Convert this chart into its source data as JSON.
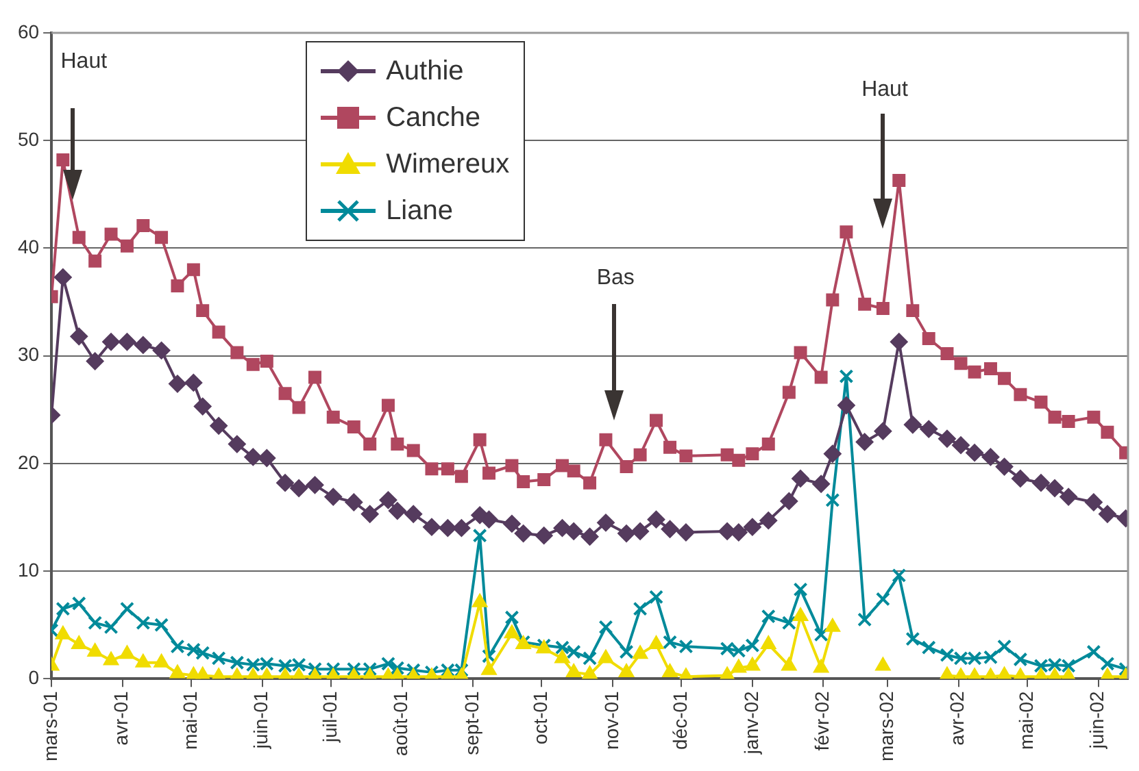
{
  "chart_data": {
    "type": "line",
    "x": [
      "2001-03-01",
      "2001-03-06",
      "2001-03-13",
      "2001-03-20",
      "2001-03-27",
      "2001-04-03",
      "2001-04-10",
      "2001-04-18",
      "2001-04-25",
      "2001-05-02",
      "2001-05-06",
      "2001-05-13",
      "2001-05-21",
      "2001-05-28",
      "2001-06-03",
      "2001-06-11",
      "2001-06-17",
      "2001-06-24",
      "2001-07-02",
      "2001-07-11",
      "2001-07-18",
      "2001-07-26",
      "2001-07-30",
      "2001-08-06",
      "2001-08-14",
      "2001-08-21",
      "2001-08-27",
      "2001-09-04",
      "2001-09-08",
      "2001-09-18",
      "2001-09-23",
      "2001-10-02",
      "2001-10-10",
      "2001-10-15",
      "2001-10-22",
      "2001-10-29",
      "2001-11-07",
      "2001-11-13",
      "2001-11-20",
      "2001-11-26",
      "2001-12-03",
      "2001-12-21",
      "2001-12-26",
      "2002-01-01",
      "2002-01-08",
      "2002-01-17",
      "2002-01-22",
      "2002-01-31",
      "2002-02-05",
      "2002-02-11",
      "2002-02-19",
      "2002-02-27",
      "2002-03-06",
      "2002-03-12",
      "2002-03-19",
      "2002-03-27",
      "2002-04-02",
      "2002-04-08",
      "2002-04-15",
      "2002-04-21",
      "2002-04-28",
      "2002-05-07",
      "2002-05-13",
      "2002-05-19",
      "2002-05-30",
      "2002-06-05",
      "2002-06-13"
    ],
    "series": [
      {
        "name": "Authie",
        "color": "#553b5e",
        "marker": "diamond",
        "values": [
          24.5,
          37.3,
          31.8,
          29.5,
          31.3,
          31.3,
          31,
          30.5,
          27.4,
          27.5,
          25.3,
          23.5,
          21.8,
          20.6,
          20.5,
          18.2,
          17.7,
          18,
          16.9,
          16.4,
          15.3,
          16.6,
          15.6,
          15.3,
          14.1,
          14,
          14,
          15.2,
          14.8,
          14.4,
          13.5,
          13.3,
          14,
          13.7,
          13.2,
          14.5,
          13.5,
          13.7,
          14.8,
          13.9,
          13.6,
          13.7,
          13.6,
          14.1,
          14.7,
          16.5,
          18.6,
          18.1,
          20.9,
          25.4,
          22,
          23,
          31.3,
          23.6,
          23.2,
          22.3,
          21.7,
          21,
          20.6,
          19.7,
          18.6,
          18.2,
          17.7,
          16.9,
          16.4,
          15.3,
          14.9
        ]
      },
      {
        "name": "Canche",
        "color": "#b0475f",
        "marker": "square",
        "values": [
          35.5,
          48.2,
          41,
          38.8,
          41.3,
          40.2,
          42.1,
          41,
          36.5,
          38,
          34.2,
          32.2,
          30.3,
          29.2,
          29.5,
          26.5,
          25.2,
          28,
          24.3,
          23.4,
          21.8,
          25.4,
          21.8,
          21.2,
          19.5,
          19.5,
          18.8,
          22.2,
          19.1,
          19.8,
          18.3,
          18.5,
          19.8,
          19.3,
          18.2,
          22.2,
          19.7,
          20.8,
          24,
          21.5,
          20.7,
          20.8,
          20.3,
          20.9,
          21.8,
          26.6,
          30.3,
          28,
          35.2,
          41.5,
          34.8,
          34.4,
          46.3,
          34.2,
          31.6,
          30.2,
          29.3,
          28.5,
          28.8,
          27.9,
          26.4,
          25.7,
          24.3,
          23.9,
          24.3,
          22.9,
          21
        ]
      },
      {
        "name": "Wimereux",
        "color": "#f0dc00",
        "marker": "triangle",
        "values": [
          1.2,
          4.1,
          3.2,
          2.5,
          1.7,
          2.3,
          1.5,
          1.5,
          0.5,
          0.3,
          0.3,
          0.2,
          0.2,
          0.2,
          0.2,
          0.2,
          0.2,
          0.2,
          0.2,
          0.2,
          0.2,
          0.2,
          0.2,
          0.2,
          0.2,
          0.2,
          0.2,
          7.1,
          0.8,
          4.2,
          3.2,
          2.8,
          1.9,
          0.6,
          0.4,
          1.9,
          0.6,
          2.3,
          3.2,
          0.6,
          0.2,
          0.3,
          1,
          1.2,
          3.2,
          1.2,
          5.8,
          1,
          4.8,
          null,
          null,
          1.2,
          null,
          null,
          null,
          0.3,
          0.2,
          0.2,
          0.2,
          0.3,
          0.2,
          0.2,
          0.2,
          0.2,
          null,
          0.2,
          0.2
        ]
      },
      {
        "name": "Liane",
        "color": "#008a9a",
        "marker": "cross",
        "values": [
          4.5,
          6.5,
          7,
          5.2,
          4.8,
          6.5,
          5.2,
          5,
          3,
          2.7,
          2.4,
          1.9,
          1.5,
          1.3,
          1.4,
          1.2,
          1.3,
          0.9,
          0.9,
          0.9,
          0.9,
          1.4,
          1,
          0.8,
          0.6,
          0.8,
          0.8,
          13.3,
          2.1,
          5.7,
          3.4,
          3.1,
          2.9,
          2.5,
          1.9,
          4.8,
          2.5,
          6.5,
          7.6,
          3.4,
          3,
          2.8,
          2.6,
          3.1,
          5.8,
          5.2,
          8.3,
          4.1,
          16.6,
          28.1,
          5.5,
          7.4,
          9.6,
          3.7,
          2.9,
          2.2,
          1.9,
          1.9,
          2,
          3,
          1.8,
          1.2,
          1.3,
          1.2,
          2.5,
          1.4,
          0.9
        ]
      }
    ],
    "xlim": [
      "2001-03-01",
      "2002-06-14"
    ],
    "xticks": [
      {
        "value": "2001-03-01",
        "label": "mars-01"
      },
      {
        "value": "2001-04-01",
        "label": "avr-01"
      },
      {
        "value": "2001-05-01",
        "label": "mai-01"
      },
      {
        "value": "2001-06-01",
        "label": "juin-01"
      },
      {
        "value": "2001-07-01",
        "label": "juil-01"
      },
      {
        "value": "2001-08-01",
        "label": "août-01"
      },
      {
        "value": "2001-09-01",
        "label": "sept-01"
      },
      {
        "value": "2001-10-01",
        "label": "oct-01"
      },
      {
        "value": "2001-11-01",
        "label": "nov-01"
      },
      {
        "value": "2001-12-01",
        "label": "déc-01"
      },
      {
        "value": "2002-01-01",
        "label": "janv-02"
      },
      {
        "value": "2002-02-01",
        "label": "févr-02"
      },
      {
        "value": "2002-03-01",
        "label": "mars-02"
      },
      {
        "value": "2002-04-01",
        "label": "avr-02"
      },
      {
        "value": "2002-05-01",
        "label": "mai-02"
      },
      {
        "value": "2002-06-01",
        "label": "juin-02"
      }
    ],
    "ylim": [
      0,
      60
    ],
    "yticks": [
      0,
      10,
      20,
      30,
      40,
      50,
      60
    ],
    "grid": "y",
    "legend": "top left",
    "line_style": "solid",
    "annotations": [
      "Haut",
      "Bas",
      "Haut"
    ]
  }
}
